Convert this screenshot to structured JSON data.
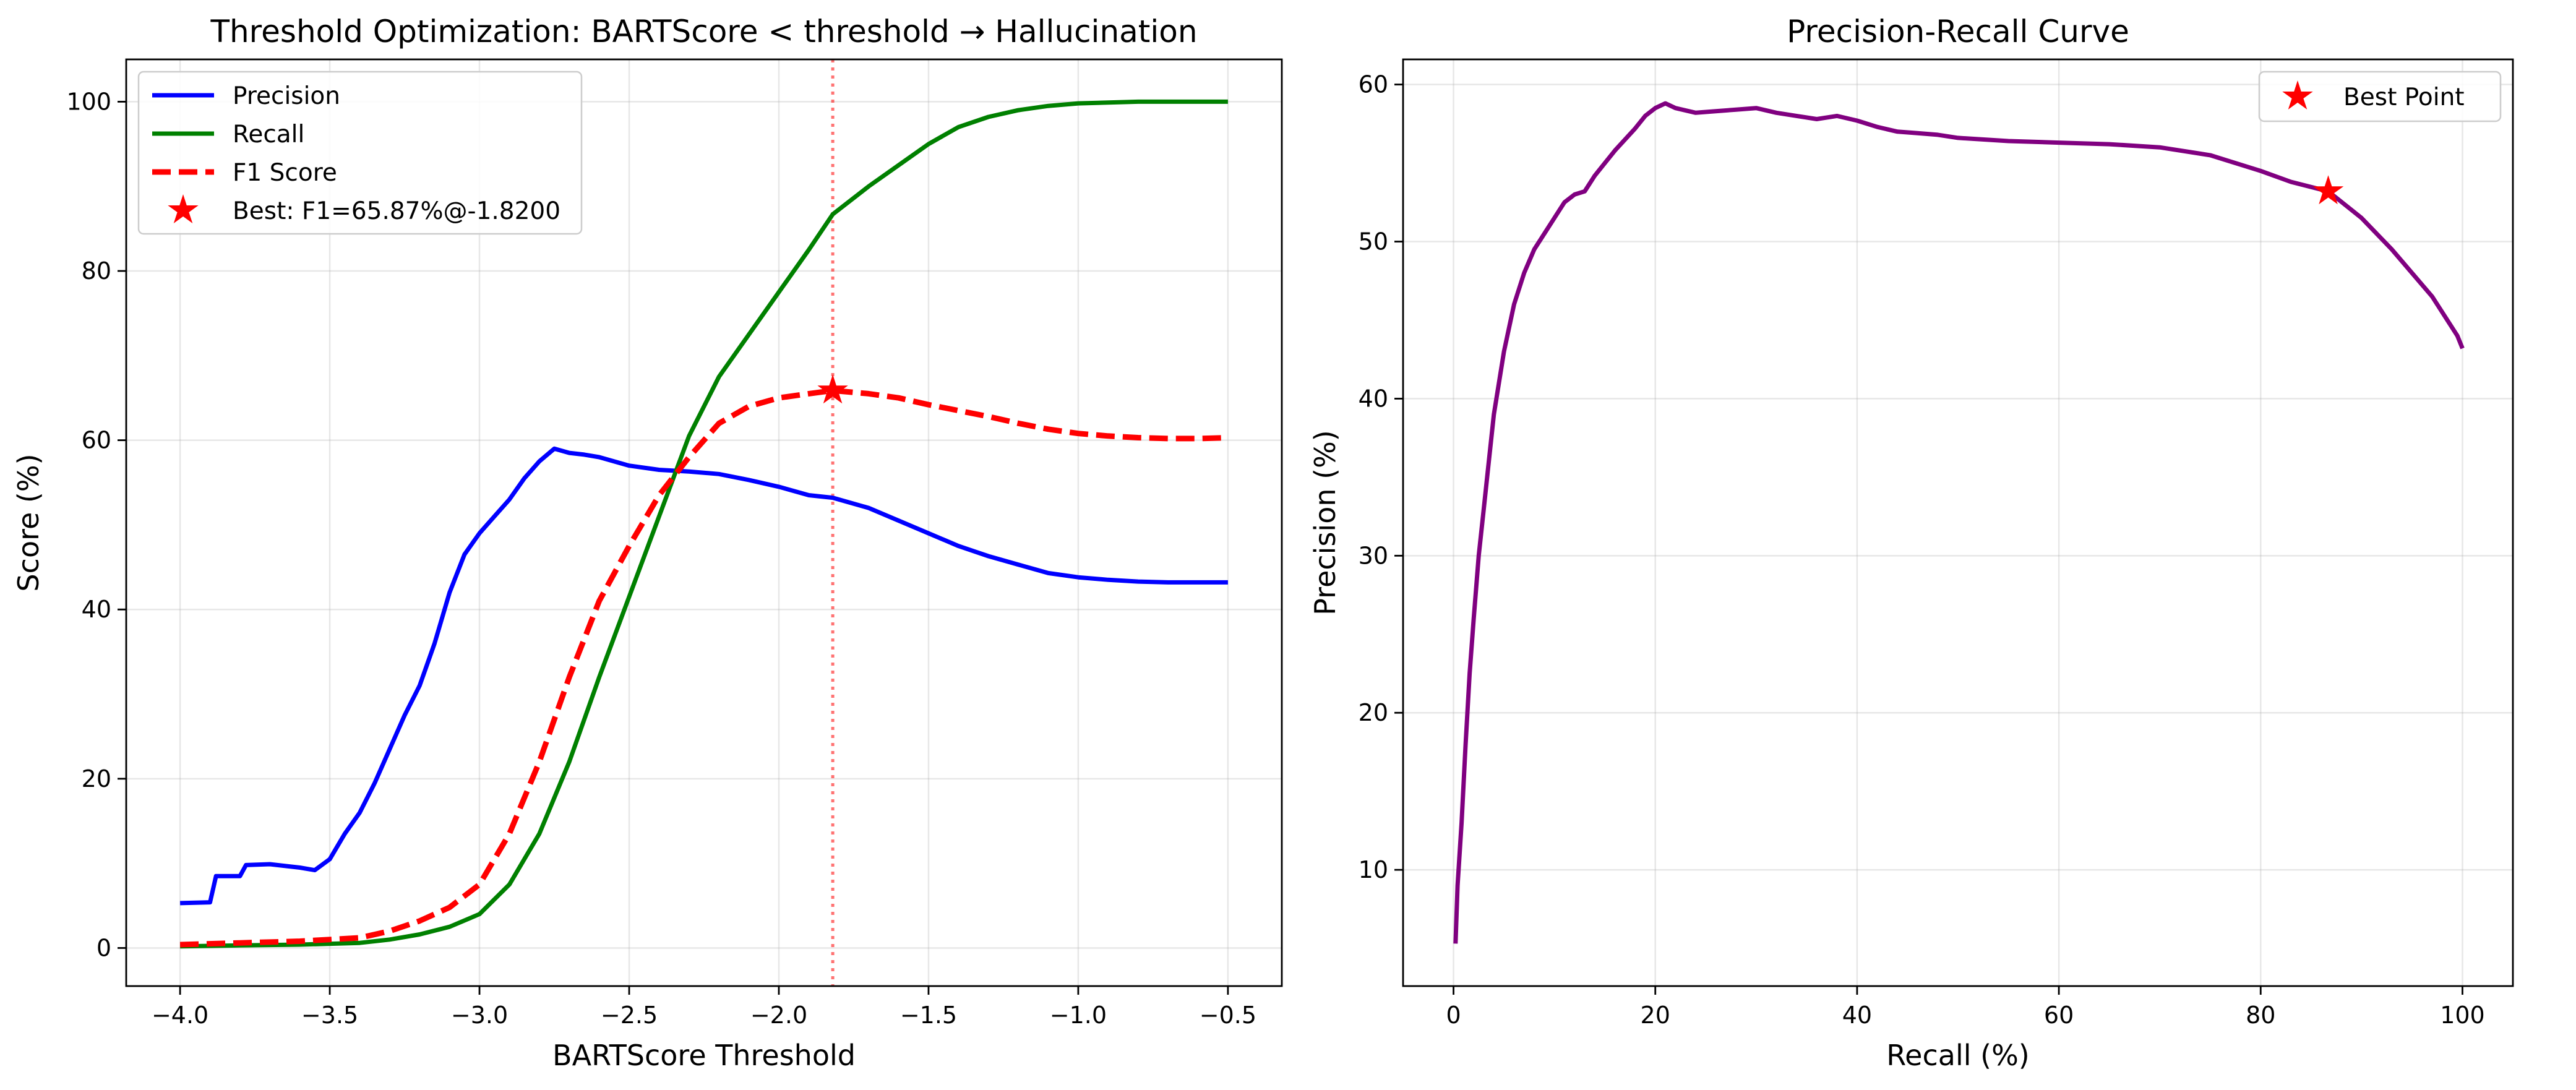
{
  "chart_data": [
    {
      "type": "line",
      "title": "Threshold Optimization: BARTScore < threshold → Hallucination",
      "xlabel": "BARTScore Threshold",
      "ylabel": "Score (%)",
      "xlim": [
        -4.18,
        -0.32
      ],
      "ylim": [
        -4.5,
        105
      ],
      "xticks": [
        -4.0,
        -3.5,
        -3.0,
        -2.5,
        -2.0,
        -1.5,
        -1.0,
        -0.5
      ],
      "xtick_labels": [
        "−4.0",
        "−3.5",
        "−3.0",
        "−2.5",
        "−2.0",
        "−1.5",
        "−1.0",
        "−0.5"
      ],
      "yticks": [
        0,
        20,
        40,
        60,
        80,
        100
      ],
      "ytick_labels": [
        "0",
        "20",
        "40",
        "60",
        "80",
        "100"
      ],
      "grid": true,
      "legend_position": "top-left",
      "threshold_line": -1.82,
      "series": [
        {
          "name": "Precision",
          "color": "#0000ff",
          "style": "solid",
          "x": [
            -4.0,
            -3.9,
            -3.88,
            -3.8,
            -3.78,
            -3.7,
            -3.6,
            -3.55,
            -3.5,
            -3.45,
            -3.4,
            -3.35,
            -3.3,
            -3.25,
            -3.2,
            -3.15,
            -3.1,
            -3.05,
            -3.0,
            -2.95,
            -2.9,
            -2.85,
            -2.8,
            -2.75,
            -2.7,
            -2.65,
            -2.6,
            -2.5,
            -2.4,
            -2.3,
            -2.2,
            -2.1,
            -2.0,
            -1.9,
            -1.82,
            -1.7,
            -1.6,
            -1.5,
            -1.4,
            -1.3,
            -1.2,
            -1.1,
            -1.0,
            -0.9,
            -0.8,
            -0.7,
            -0.6,
            -0.5
          ],
          "y": [
            5.3,
            5.4,
            8.5,
            8.5,
            9.8,
            9.9,
            9.5,
            9.2,
            10.5,
            13.5,
            16.0,
            19.5,
            23.5,
            27.5,
            31.0,
            36.0,
            42.0,
            46.5,
            49.0,
            51.0,
            53.0,
            55.5,
            57.5,
            59.0,
            58.5,
            58.3,
            58.0,
            57.0,
            56.5,
            56.3,
            56.0,
            55.3,
            54.5,
            53.5,
            53.2,
            52.0,
            50.5,
            49.0,
            47.5,
            46.3,
            45.3,
            44.3,
            43.8,
            43.5,
            43.3,
            43.2,
            43.2,
            43.2
          ]
        },
        {
          "name": "Recall",
          "color": "#008000",
          "style": "solid",
          "x": [
            -4.0,
            -3.8,
            -3.6,
            -3.4,
            -3.3,
            -3.2,
            -3.1,
            -3.0,
            -2.9,
            -2.8,
            -2.7,
            -2.6,
            -2.5,
            -2.4,
            -2.3,
            -2.2,
            -2.1,
            -2.0,
            -1.9,
            -1.82,
            -1.7,
            -1.6,
            -1.5,
            -1.4,
            -1.3,
            -1.2,
            -1.1,
            -1.0,
            -0.9,
            -0.8,
            -0.7,
            -0.6,
            -0.5
          ],
          "y": [
            0.2,
            0.3,
            0.4,
            0.6,
            1.0,
            1.6,
            2.5,
            4.0,
            7.5,
            13.5,
            22.0,
            32.0,
            41.5,
            51.0,
            60.5,
            67.5,
            72.5,
            77.5,
            82.5,
            86.7,
            90.0,
            92.5,
            95.0,
            97.0,
            98.2,
            99.0,
            99.5,
            99.8,
            99.9,
            100.0,
            100.0,
            100.0,
            100.0
          ]
        },
        {
          "name": "F1 Score",
          "color": "#ff0000",
          "style": "dashed",
          "x": [
            -4.0,
            -3.8,
            -3.6,
            -3.4,
            -3.3,
            -3.2,
            -3.1,
            -3.0,
            -2.9,
            -2.8,
            -2.7,
            -2.6,
            -2.5,
            -2.4,
            -2.3,
            -2.2,
            -2.1,
            -2.0,
            -1.9,
            -1.82,
            -1.7,
            -1.6,
            -1.5,
            -1.4,
            -1.3,
            -1.2,
            -1.1,
            -1.0,
            -0.9,
            -0.8,
            -0.7,
            -0.6,
            -0.5
          ],
          "y": [
            0.4,
            0.6,
            0.8,
            1.2,
            2.0,
            3.2,
            4.8,
            7.5,
            13.5,
            22.0,
            32.0,
            41.0,
            47.5,
            53.5,
            58.0,
            62.0,
            64.0,
            65.0,
            65.5,
            65.87,
            65.5,
            65.0,
            64.2,
            63.5,
            62.8,
            62.0,
            61.3,
            60.8,
            60.5,
            60.3,
            60.2,
            60.2,
            60.3
          ]
        }
      ],
      "best_point": {
        "label": "Best: F1=65.87%@-1.8200",
        "x": -1.82,
        "y": 65.87,
        "color": "#ff0000",
        "marker": "star"
      }
    },
    {
      "type": "line",
      "title": "Precision-Recall Curve",
      "xlabel": "Recall (%)",
      "ylabel": "Precision (%)",
      "xlim": [
        -5,
        105
      ],
      "ylim": [
        2.6,
        61.6
      ],
      "xticks": [
        0,
        20,
        40,
        60,
        80,
        100
      ],
      "xtick_labels": [
        "0",
        "20",
        "40",
        "60",
        "80",
        "100"
      ],
      "yticks": [
        10,
        20,
        30,
        40,
        50,
        60
      ],
      "ytick_labels": [
        "10",
        "20",
        "30",
        "40",
        "50",
        "60"
      ],
      "grid": true,
      "legend_position": "top-right",
      "series": [
        {
          "name": "",
          "color": "#800080",
          "style": "solid",
          "x": [
            0.2,
            0.4,
            0.8,
            1.2,
            1.6,
            2.0,
            2.5,
            3.0,
            3.5,
            4.0,
            5.0,
            6.0,
            7.0,
            8.0,
            9.0,
            10.0,
            11.0,
            12.0,
            13.0,
            14.0,
            15.0,
            16.0,
            17.0,
            18.0,
            19.0,
            20.0,
            21.0,
            22.0,
            24.0,
            26.0,
            28.0,
            30.0,
            32.0,
            34.0,
            36.0,
            38.0,
            40.0,
            42.0,
            44.0,
            46.0,
            48.0,
            50.0,
            55.0,
            60.0,
            65.0,
            70.0,
            75.0,
            80.0,
            83.0,
            86.7,
            90.0,
            93.0,
            95.0,
            97.0,
            98.5,
            99.5,
            100.0
          ],
          "y": [
            5.3,
            9.0,
            13.0,
            18.0,
            22.5,
            26.0,
            30.0,
            33.0,
            36.0,
            39.0,
            43.0,
            46.0,
            48.0,
            49.5,
            50.5,
            51.5,
            52.5,
            53.0,
            53.2,
            54.2,
            55.0,
            55.8,
            56.5,
            57.2,
            58.0,
            58.5,
            58.8,
            58.5,
            58.2,
            58.3,
            58.4,
            58.5,
            58.2,
            58.0,
            57.8,
            58.0,
            57.7,
            57.3,
            57.0,
            56.9,
            56.8,
            56.6,
            56.4,
            56.3,
            56.2,
            56.0,
            55.5,
            54.5,
            53.8,
            53.2,
            51.5,
            49.5,
            48.0,
            46.5,
            45.0,
            44.0,
            43.2
          ]
        }
      ],
      "best_point": {
        "label": "Best Point",
        "x": 86.7,
        "y": 53.2,
        "color": "#ff0000",
        "marker": "star"
      }
    }
  ]
}
